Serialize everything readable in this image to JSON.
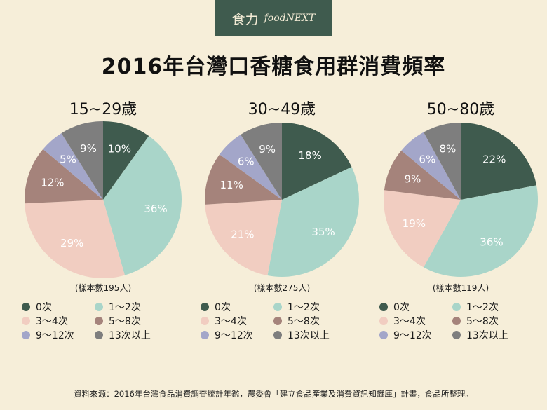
{
  "logo": {
    "chinese": "食力",
    "english": "foodNEXT"
  },
  "title": "2016年台灣口香糖食用群消費頻率",
  "colors": {
    "0次": "#3f5b4e",
    "1～2次": "#a9d5c9",
    "3～4次": "#f1cdc1",
    "5～8次": "#a5837b",
    "9～12次": "#a3a6c9",
    "13次以上": "#7e7e7e"
  },
  "legend": [
    "0次",
    "1～2次",
    "3～4次",
    "5～8次",
    "9～12次",
    "13次以上"
  ],
  "chart_data": [
    {
      "type": "pie",
      "title": "15~29歲",
      "sample": "(樣本數195人)",
      "categories": [
        "0次",
        "1～2次",
        "3～4次",
        "5～8次",
        "9～12次",
        "13次以上"
      ],
      "values": [
        10,
        36,
        29,
        12,
        5,
        9
      ],
      "labels": [
        "10%",
        "36%",
        "29%",
        "12%",
        "5%",
        "9%"
      ]
    },
    {
      "type": "pie",
      "title": "30~49歲",
      "sample": "(樣本數275人)",
      "categories": [
        "0次",
        "1～2次",
        "3～4次",
        "5～8次",
        "9～12次",
        "13次以上"
      ],
      "values": [
        18,
        35,
        21,
        11,
        6,
        9
      ],
      "labels": [
        "18%",
        "35%",
        "21%",
        "11%",
        "6%",
        "9%"
      ]
    },
    {
      "type": "pie",
      "title": "50~80歲",
      "sample": "(樣本數119人)",
      "categories": [
        "0次",
        "1～2次",
        "3～4次",
        "5～8次",
        "9～12次",
        "13次以上"
      ],
      "values": [
        22,
        36,
        19,
        9,
        6,
        8
      ],
      "labels": [
        "22%",
        "36%",
        "19%",
        "9%",
        "6%",
        "8%"
      ]
    }
  ],
  "source": "資料來源：2016年台灣食品消費調查統計年鑑，農委會「建立食品產業及消費資訊知識庫」計畫，食品所整理。"
}
